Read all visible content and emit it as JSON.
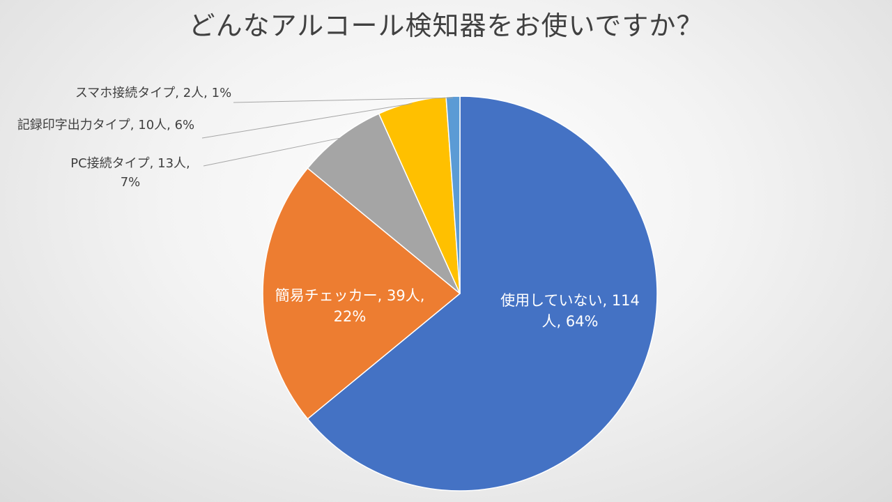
{
  "chart_data": {
    "type": "pie",
    "title": "どんなアルコール検知器をお使いですか？",
    "start_angle_deg": 0,
    "direction": "clockwise",
    "slices": [
      {
        "name": "使用していない",
        "count_label": "114人",
        "value": 114,
        "percent": 64,
        "color": "#4472C4",
        "label_lines": [
          "使用していない, 114",
          "人, 64%"
        ],
        "label_position": "inside"
      },
      {
        "name": "簡易チェッカー",
        "count_label": "39人",
        "value": 39,
        "percent": 22,
        "color": "#ED7D31",
        "label_lines": [
          "簡易チェッカー, 39人,",
          "22%"
        ],
        "label_position": "inside"
      },
      {
        "name": "PC接続タイプ",
        "count_label": "13人",
        "value": 13,
        "percent": 7,
        "color": "#A5A5A5",
        "label_lines": [
          "PC接続タイプ, 13人,",
          "7%"
        ],
        "label_position": "outside"
      },
      {
        "name": "記録印字出力タイプ",
        "count_label": "10人",
        "value": 10,
        "percent": 6,
        "color": "#FFC000",
        "label_lines": [
          "記録印字出力タイプ, 10人, 6%"
        ],
        "label_position": "outside"
      },
      {
        "name": "スマホ接続タイプ",
        "count_label": "2人",
        "value": 2,
        "percent": 1,
        "color": "#5B9BD5",
        "label_lines": [
          "スマホ接続タイプ, 2人, 1%"
        ],
        "label_position": "outside"
      }
    ]
  }
}
